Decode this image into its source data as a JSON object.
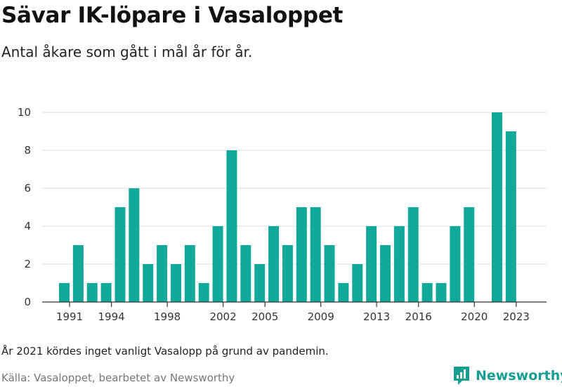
{
  "header": {
    "title": "Sävar IK-löpare i Vasaloppet",
    "subtitle": "Antal åkare som gått i mål år för år."
  },
  "footer": {
    "note": "År 2021 kördes inget vanligt Vasalopp på grund av pandemin.",
    "source": "Källa: Vasaloppet, bearbetet av Newsworthy",
    "logo_text": "Newsworthy"
  },
  "colors": {
    "bar": "#12a99b",
    "grid": "#dddddd",
    "axis": "#333333",
    "logo": "#179e92"
  },
  "chart_data": {
    "type": "bar",
    "title": "Sävar IK-löpare i Vasaloppet",
    "subtitle": "Antal åkare som gått i mål år för år.",
    "xlabel": "",
    "ylabel": "",
    "categories": [
      1991,
      1992,
      1993,
      1994,
      1995,
      1996,
      1997,
      1998,
      1999,
      2000,
      2001,
      2002,
      2003,
      2004,
      2005,
      2006,
      2007,
      2008,
      2009,
      2010,
      2011,
      2012,
      2013,
      2014,
      2015,
      2016,
      2017,
      2018,
      2019,
      2020,
      2021,
      2022,
      2023
    ],
    "values": [
      1,
      3,
      1,
      1,
      5,
      6,
      2,
      3,
      2,
      3,
      1,
      4,
      8,
      3,
      2,
      4,
      3,
      5,
      5,
      3,
      1,
      2,
      4,
      3,
      4,
      5,
      1,
      1,
      4,
      5,
      null,
      10,
      9
    ],
    "x_tick_labels": [
      "1991",
      "1994",
      "1998",
      "2002",
      "2005",
      "2009",
      "2013",
      "2016",
      "2020",
      "2023"
    ],
    "y_ticks": [
      0,
      2,
      4,
      6,
      8,
      10
    ],
    "ylim": [
      0,
      10
    ],
    "grid": true,
    "legend": "none"
  }
}
